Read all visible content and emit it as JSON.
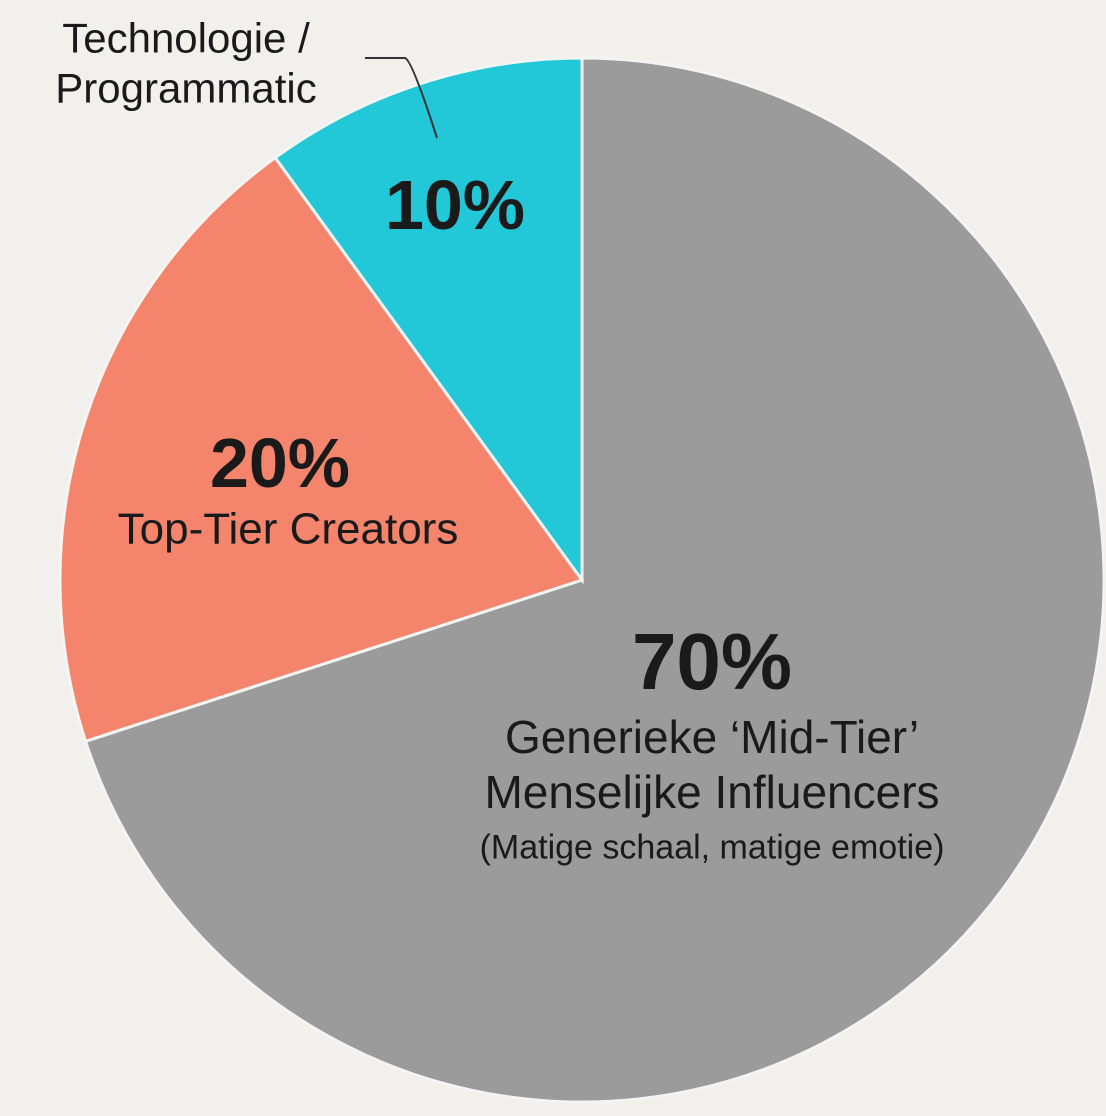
{
  "chart_data": {
    "type": "pie",
    "categories": [
      "Generieke ‘Mid-Tier’ Menselijke Influencers",
      "Top-Tier Creators",
      "Technologie / Programmatic"
    ],
    "values": [
      70,
      20,
      10
    ],
    "value_labels": [
      "70%",
      "20%",
      "10%"
    ],
    "colors": [
      "#9b9b9b",
      "#f5846c",
      "#22c7d8"
    ],
    "annotation": "(Matige schaal, matige emotie)"
  }
}
